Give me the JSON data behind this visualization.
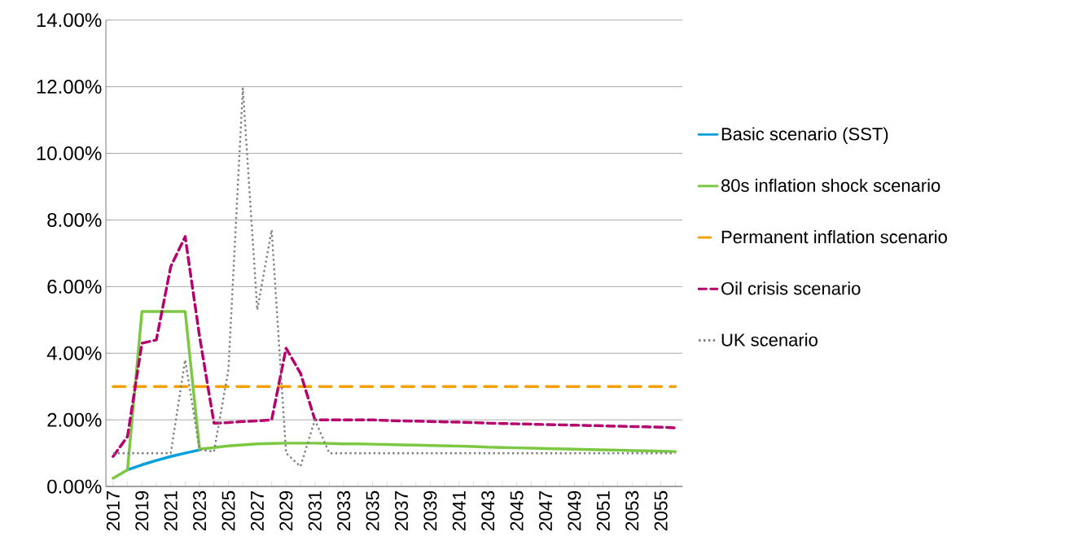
{
  "chart_data": {
    "type": "line",
    "categories": [
      "2017",
      null,
      "2019",
      null,
      "2021",
      null,
      "2023",
      null,
      "2025",
      null,
      "2027",
      null,
      "2029",
      null,
      "2031",
      null,
      "2033",
      null,
      "2035",
      null,
      "2037",
      null,
      "2039",
      null,
      "2041",
      null,
      "2043",
      null,
      "2045",
      null,
      "2047",
      null,
      "2049",
      null,
      "2051",
      null,
      "2053",
      null,
      "2055",
      null
    ],
    "series": [
      {
        "name": "Basic scenario (SST)",
        "color": "#00a0dc",
        "line_style": "solid",
        "values": [
          null,
          0.5,
          0.65,
          0.78,
          0.9,
          1.0,
          1.1,
          null,
          null,
          null,
          null,
          null,
          null,
          null,
          null,
          null,
          null,
          null,
          null,
          null,
          null,
          null,
          null,
          null,
          null,
          null,
          null,
          null,
          null,
          null,
          null,
          null,
          null,
          null,
          null,
          null,
          null,
          null,
          null,
          null
        ]
      },
      {
        "name": "80s inflation shock scenario",
        "color": "#7dc843",
        "line_style": "solid",
        "values": [
          0.25,
          0.5,
          5.25,
          5.25,
          5.25,
          5.25,
          1.12,
          1.17,
          1.22,
          1.25,
          1.28,
          1.29,
          1.3,
          1.3,
          1.3,
          1.29,
          1.28,
          1.28,
          1.27,
          1.26,
          1.25,
          1.24,
          1.23,
          1.22,
          1.21,
          1.2,
          1.18,
          1.17,
          1.16,
          1.15,
          1.14,
          1.13,
          1.12,
          1.11,
          1.1,
          1.09,
          1.08,
          1.07,
          1.06,
          1.05
        ]
      },
      {
        "name": "Permanent inflation scenario",
        "color": "#f5a000",
        "line_style": "dashed",
        "values": [
          3.0,
          3.0,
          3.0,
          3.0,
          3.0,
          3.0,
          3.0,
          3.0,
          3.0,
          3.0,
          3.0,
          3.0,
          3.0,
          3.0,
          3.0,
          3.0,
          3.0,
          3.0,
          3.0,
          3.0,
          3.0,
          3.0,
          3.0,
          3.0,
          3.0,
          3.0,
          3.0,
          3.0,
          3.0,
          3.0,
          3.0,
          3.0,
          3.0,
          3.0,
          3.0,
          3.0,
          3.0,
          3.0,
          3.0,
          3.0
        ]
      },
      {
        "name": "Oil crisis scenario",
        "color": "#b5006e",
        "line_style": "dashed",
        "values": [
          0.9,
          1.5,
          4.3,
          4.4,
          6.6,
          7.5,
          4.5,
          1.9,
          1.92,
          1.95,
          1.97,
          2.0,
          4.15,
          3.4,
          2.0,
          2.0,
          2.0,
          2.0,
          2.0,
          1.98,
          1.97,
          1.96,
          1.95,
          1.94,
          1.93,
          1.92,
          1.9,
          1.89,
          1.88,
          1.87,
          1.86,
          1.85,
          1.84,
          1.83,
          1.82,
          1.81,
          1.8,
          1.79,
          1.78,
          1.76
        ]
      },
      {
        "name": "UK scenario",
        "color": "#808080",
        "line_style": "dotted",
        "values": [
          1.0,
          1.0,
          1.0,
          1.0,
          1.0,
          3.8,
          1.1,
          1.05,
          3.5,
          11.95,
          5.3,
          7.7,
          1.0,
          0.6,
          2.0,
          1.0,
          1.0,
          1.0,
          1.0,
          1.0,
          1.0,
          1.0,
          1.0,
          1.0,
          1.0,
          1.0,
          1.0,
          1.0,
          1.0,
          1.0,
          1.0,
          1.0,
          1.0,
          1.0,
          1.0,
          1.0,
          1.0,
          1.0,
          1.0,
          1.0
        ]
      }
    ],
    "ylim": [
      0,
      14
    ],
    "yticks": [
      {
        "value": 0,
        "label": "0.00%"
      },
      {
        "value": 2,
        "label": "2.00%"
      },
      {
        "value": 4,
        "label": "4.00%"
      },
      {
        "value": 6,
        "label": "6.00%"
      },
      {
        "value": 8,
        "label": "8.00%"
      },
      {
        "value": 10,
        "label": "10.00%"
      },
      {
        "value": 12,
        "label": "12.00%"
      },
      {
        "value": 14,
        "label": "14.00%"
      }
    ],
    "grid": "y",
    "legend": "right",
    "marker": "none"
  }
}
